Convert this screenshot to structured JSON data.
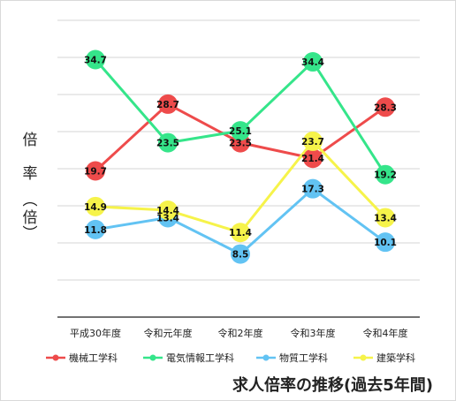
{
  "chart_data": {
    "type": "line",
    "title": "求人倍率の推移(過去5年間)",
    "ylabel": "倍率（倍）",
    "ylabel_chars": [
      "倍",
      "率",
      "︵",
      "倍",
      "︶"
    ],
    "categories": [
      "平成30年度",
      "令和元年度",
      "令和2年度",
      "令和3年度",
      "令和4年度"
    ],
    "ylim": [
      0,
      40
    ],
    "grid": true,
    "legend_position": "bottom",
    "series": [
      {
        "name": "機械工学科",
        "color": "#ee4b4b",
        "values": [
          19.7,
          28.7,
          23.5,
          21.4,
          28.3
        ]
      },
      {
        "name": "電気情報工学科",
        "color": "#35e58a",
        "values": [
          34.7,
          23.5,
          25.1,
          34.4,
          19.2
        ]
      },
      {
        "name": "物質工学科",
        "color": "#62c3f3",
        "values": [
          11.8,
          13.4,
          8.5,
          17.3,
          10.1
        ]
      },
      {
        "name": "建築学科",
        "color": "#f6f34a",
        "values": [
          14.9,
          14.4,
          11.4,
          23.7,
          13.4
        ]
      }
    ]
  }
}
